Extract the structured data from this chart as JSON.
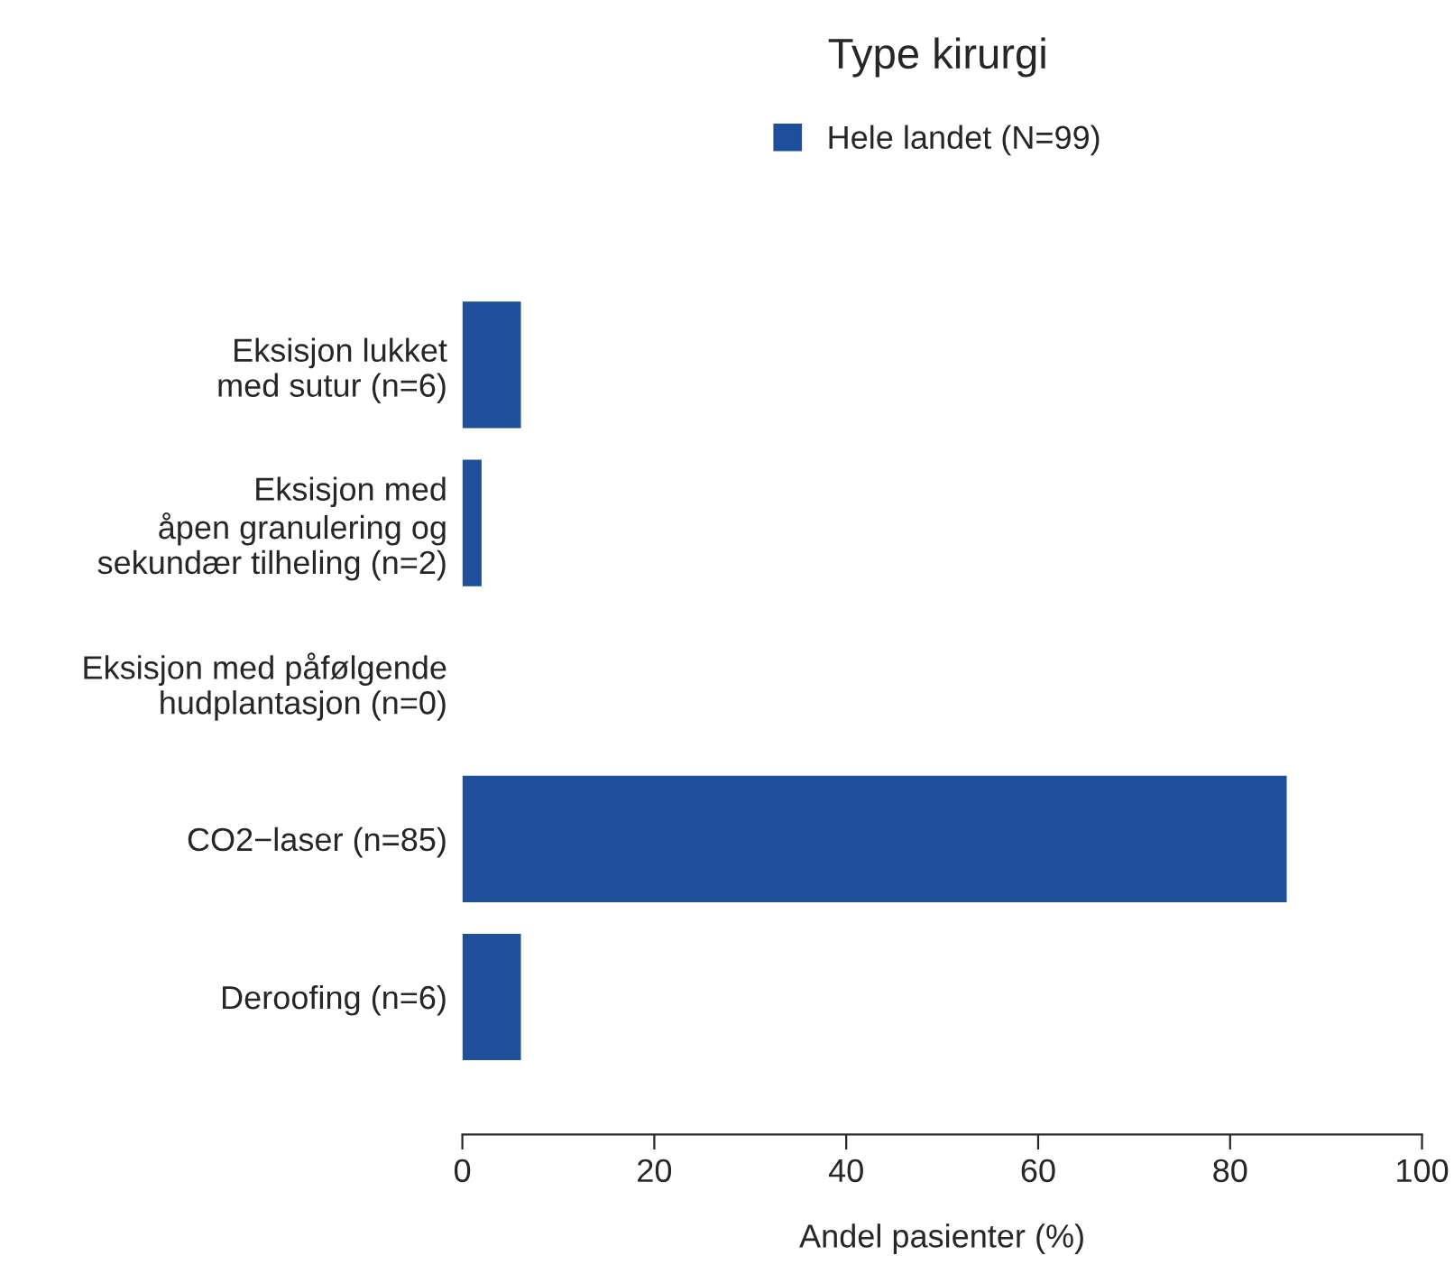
{
  "chart_data": {
    "type": "bar",
    "orientation": "horizontal",
    "title": "Type kirurgi",
    "xlabel": "Andel pasienter (%)",
    "categories": [
      "Eksisjon lukket\nmed sutur (n=6)",
      "Eksisjon med\nåpen granulering og\nsekundær tilheling (n=2)",
      "Eksisjon med påfølgende\nhudplantasjon (n=0)",
      "CO2−laser (n=85)",
      "Deroofing (n=6)"
    ],
    "series": [
      {
        "name": "Hele landet (N=99)",
        "color": "#1f4e9a",
        "values": [
          6.1,
          2.0,
          0,
          85.9,
          6.1
        ]
      }
    ],
    "xlim": [
      0,
      100
    ],
    "xticks": [
      0,
      20,
      40,
      60,
      80,
      100
    ],
    "grid": false,
    "legend": "top"
  }
}
